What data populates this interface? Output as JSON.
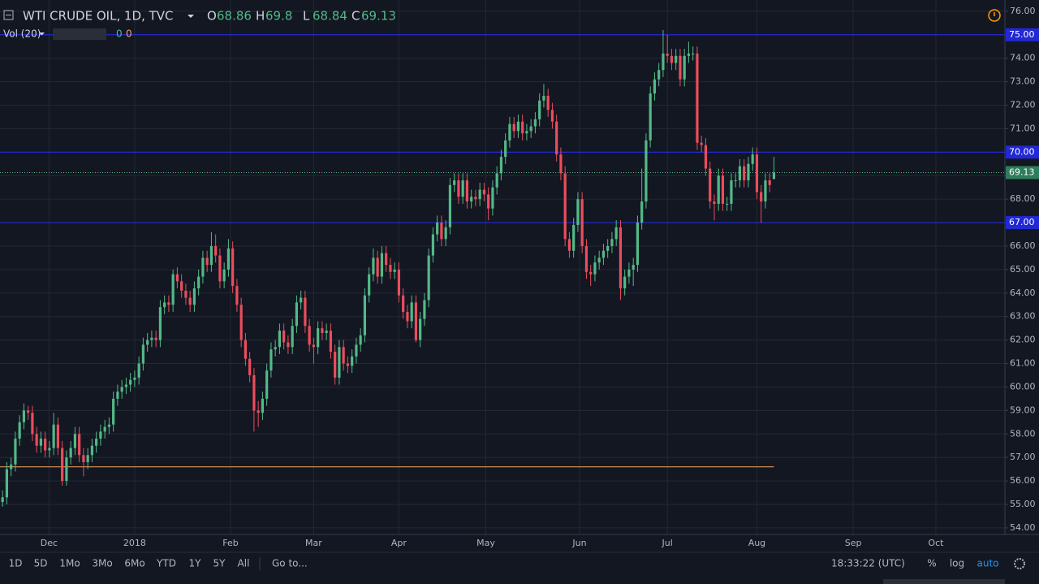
{
  "chart_data": {
    "type": "candlestick",
    "title": "WTI CRUDE OIL, 1D, TVC",
    "ohlc_labels": [
      "O",
      "H",
      "L",
      "C"
    ],
    "indicator": "Vol (20)",
    "indicator_values": [
      0,
      0
    ],
    "up_color": "#53b987",
    "down_color": "#eb4d5c",
    "grid": true,
    "log": false,
    "ylim": [
      53.72,
      76.48
    ],
    "yticks": [
      {
        "value": 54,
        "label": "54.00"
      },
      {
        "value": 55,
        "label": "55.00"
      },
      {
        "value": 56,
        "label": "56.00"
      },
      {
        "value": 57,
        "label": "57.00"
      },
      {
        "value": 58,
        "label": "58.00"
      },
      {
        "value": 59,
        "label": "59.00"
      },
      {
        "value": 60,
        "label": "60.00"
      },
      {
        "value": 61,
        "label": "61.00"
      },
      {
        "value": 62,
        "label": "62.00"
      },
      {
        "value": 63,
        "label": "63.00"
      },
      {
        "value": 64,
        "label": "64.00"
      },
      {
        "value": 65,
        "label": "65.00"
      },
      {
        "value": 66,
        "label": "66.00"
      },
      {
        "value": 67,
        "label": "67.00"
      },
      {
        "value": 68,
        "label": "68.00"
      },
      {
        "value": 69,
        "label": "69.00"
      },
      {
        "value": 70,
        "label": "70.00"
      },
      {
        "value": 71,
        "label": "71.00"
      },
      {
        "value": 72,
        "label": "72.00"
      },
      {
        "value": 73,
        "label": "73.00"
      },
      {
        "value": 74,
        "label": "74.00"
      },
      {
        "value": 75,
        "label": "75.00"
      },
      {
        "value": 76,
        "label": "76.00"
      }
    ],
    "xlim": [
      -0.6,
      235.2
    ],
    "xticks": [
      {
        "value": 10.9,
        "label": "Dec"
      },
      {
        "value": 31,
        "label": "2018"
      },
      {
        "value": 53.5,
        "label": "Feb"
      },
      {
        "value": 73,
        "label": "Mar"
      },
      {
        "value": 93,
        "label": "Apr"
      },
      {
        "value": 113.4,
        "label": "May"
      },
      {
        "value": 135.4,
        "label": "Jun"
      },
      {
        "value": 156,
        "label": "Jul"
      },
      {
        "value": 177,
        "label": "Aug"
      },
      {
        "value": 199.6,
        "label": "Sep"
      },
      {
        "value": 219,
        "label": "Oct"
      }
    ],
    "hlines": [
      {
        "value": 75,
        "label": "75.00",
        "color": "#2128d4"
      },
      {
        "value": 70,
        "label": "70.00",
        "color": "#2128d4"
      },
      {
        "value": 67,
        "label": "67.00",
        "color": "#2128d4"
      }
    ],
    "support_line": {
      "value": 56.6,
      "color": "#f7a35c"
    },
    "open": [
      55.1,
      55.3,
      56.5,
      56.7,
      57.8,
      58.5,
      59.0,
      58.9,
      58.0,
      57.5,
      57.8,
      57.3,
      57.4,
      58.4,
      57.4,
      56.0,
      57.0,
      57.4,
      58.0,
      57.1,
      56.8,
      57.1,
      57.5,
      57.8,
      58.1,
      58.3,
      58.4,
      59.5,
      59.8,
      60.0,
      60.1,
      60.3,
      60.4,
      61.0,
      61.8,
      62.0,
      62.1,
      62.0,
      63.4,
      63.6,
      63.5,
      64.8,
      64.5,
      64.1,
      63.8,
      63.5,
      64.2,
      64.7,
      65.5,
      65.2,
      66.0,
      65.6,
      64.5,
      65.0,
      65.9,
      64.3,
      63.5,
      62.0,
      61.2,
      60.5,
      59.0,
      58.9,
      59.5,
      60.7,
      61.6,
      61.7,
      62.4,
      61.9,
      61.7,
      62.6,
      63.6,
      63.8,
      62.6,
      61.8,
      61.7,
      62.5,
      62.3,
      62.4,
      61.5,
      60.4,
      61.7,
      61.0,
      60.9,
      61.3,
      61.8,
      62.2,
      63.9,
      64.8,
      65.5,
      64.7,
      65.7,
      65.2,
      64.9,
      65.0,
      63.9,
      63.2,
      62.8,
      63.6,
      62.0,
      62.9,
      63.7,
      65.6,
      66.5,
      67.0,
      66.3,
      66.8,
      68.6,
      68.8,
      68.1,
      68.8,
      67.9,
      68.1,
      68.0,
      68.4,
      68.2,
      67.6,
      68.5,
      69.1,
      69.8,
      70.5,
      71.2,
      70.9,
      71.3,
      70.8,
      70.9,
      71.1,
      71.4,
      72.2,
      72.4,
      71.8,
      71.3,
      69.9,
      69.1,
      66.3,
      65.8,
      66.9,
      68.0,
      66.0,
      64.9,
      64.8,
      65.3,
      65.5,
      65.8,
      66.0,
      66.3,
      66.8,
      64.2,
      64.7,
      65.0,
      65.2,
      67.0,
      67.9,
      70.5,
      72.5,
      73.1,
      73.5,
      74.2,
      74.1,
      73.8,
      74.1,
      73.1,
      74.1,
      74.2,
      74.2,
      70.4,
      70.3,
      69.3,
      67.9,
      67.8,
      69.0,
      67.8,
      67.8,
      68.8,
      68.8,
      69.4,
      68.8,
      69.5,
      69.9,
      68.3,
      67.9,
      68.8,
      68.86
    ],
    "high": [
      55.6,
      56.8,
      57.0,
      58.1,
      58.8,
      59.3,
      59.2,
      59.2,
      58.3,
      58.1,
      58.1,
      57.7,
      58.9,
      58.7,
      57.7,
      57.3,
      57.7,
      58.3,
      58.3,
      57.4,
      57.4,
      57.8,
      58.1,
      58.4,
      58.6,
      58.7,
      59.8,
      60.1,
      60.3,
      60.4,
      60.6,
      60.7,
      61.3,
      62.1,
      62.3,
      62.4,
      62.4,
      63.7,
      63.9,
      63.9,
      65.0,
      65.1,
      64.8,
      64.4,
      64.1,
      64.5,
      65.0,
      65.8,
      65.8,
      66.6,
      66.5,
      65.9,
      65.3,
      66.3,
      66.2,
      64.6,
      63.8,
      62.3,
      61.5,
      60.8,
      59.4,
      59.8,
      61.0,
      61.9,
      62.0,
      62.7,
      62.7,
      62.2,
      62.9,
      63.9,
      64.1,
      64.1,
      62.9,
      62.1,
      62.8,
      62.8,
      62.7,
      62.7,
      61.8,
      62.0,
      62.0,
      61.3,
      61.6,
      62.1,
      62.5,
      64.2,
      65.1,
      65.9,
      65.8,
      66.0,
      66.0,
      65.5,
      65.3,
      65.3,
      64.2,
      63.5,
      63.9,
      63.9,
      63.2,
      64.0,
      65.9,
      66.8,
      67.3,
      67.3,
      67.1,
      68.9,
      69.1,
      69.1,
      69.1,
      69.1,
      68.4,
      68.4,
      68.7,
      68.7,
      68.5,
      68.8,
      69.4,
      70.1,
      70.8,
      71.5,
      71.5,
      71.6,
      71.6,
      71.2,
      71.4,
      71.7,
      72.5,
      72.9,
      72.7,
      72.1,
      71.6,
      70.2,
      69.4,
      66.6,
      67.2,
      68.3,
      68.3,
      66.3,
      65.2,
      65.6,
      65.8,
      66.1,
      66.3,
      66.6,
      67.1,
      67.1,
      65.0,
      65.3,
      65.5,
      67.3,
      69.3,
      70.8,
      72.8,
      73.4,
      73.8,
      75.2,
      75.0,
      74.4,
      74.4,
      74.4,
      74.4,
      74.7,
      74.5,
      74.5,
      70.7,
      70.6,
      69.6,
      68.2,
      69.3,
      69.3,
      68.1,
      69.1,
      69.1,
      69.7,
      69.7,
      69.8,
      70.2,
      70.2,
      68.6,
      69.1,
      69.1,
      69.8
    ],
    "low": [
      54.9,
      55.0,
      56.2,
      56.4,
      57.5,
      58.2,
      58.6,
      57.7,
      57.2,
      57.2,
      57.0,
      57.0,
      57.1,
      57.1,
      55.8,
      55.8,
      56.7,
      57.1,
      56.8,
      56.2,
      56.5,
      56.8,
      57.2,
      57.5,
      57.8,
      58.0,
      58.1,
      59.2,
      59.5,
      59.7,
      59.8,
      60.0,
      60.1,
      60.7,
      61.5,
      61.7,
      61.7,
      61.7,
      63.1,
      63.2,
      63.2,
      64.2,
      63.8,
      63.5,
      63.2,
      63.2,
      63.9,
      64.4,
      64.9,
      64.9,
      65.3,
      64.2,
      64.2,
      64.7,
      64.0,
      63.2,
      61.7,
      60.9,
      60.2,
      58.1,
      58.3,
      58.6,
      59.2,
      60.4,
      61.3,
      61.4,
      61.6,
      61.4,
      61.4,
      62.3,
      63.3,
      62.3,
      61.5,
      61.0,
      61.4,
      62.0,
      62.0,
      61.2,
      60.1,
      60.1,
      60.7,
      60.6,
      60.6,
      61.0,
      61.5,
      61.9,
      63.6,
      64.5,
      64.4,
      64.4,
      64.9,
      64.6,
      64.6,
      63.6,
      62.9,
      62.5,
      62.5,
      61.9,
      61.7,
      62.6,
      63.4,
      65.3,
      66.2,
      66.0,
      66.0,
      66.5,
      68.3,
      67.8,
      67.8,
      67.6,
      67.6,
      67.7,
      67.7,
      67.9,
      67.1,
      67.3,
      68.2,
      68.8,
      69.5,
      70.2,
      70.6,
      70.6,
      70.5,
      70.5,
      70.6,
      70.8,
      71.1,
      71.9,
      71.5,
      71.0,
      69.6,
      68.8,
      66.0,
      65.5,
      65.5,
      66.6,
      65.7,
      64.6,
      64.3,
      64.5,
      65.0,
      65.2,
      65.5,
      65.7,
      66.0,
      63.7,
      63.9,
      64.4,
      64.3,
      64.9,
      66.7,
      67.6,
      70.2,
      72.2,
      72.8,
      73.2,
      73.8,
      73.5,
      73.5,
      72.8,
      72.8,
      73.8,
      73.9,
      70.1,
      70.0,
      69.0,
      67.6,
      67.1,
      67.5,
      67.5,
      67.5,
      67.5,
      68.5,
      68.5,
      68.5,
      68.5,
      69.2,
      68.0,
      67.0,
      67.6,
      68.3,
      68.84
    ],
    "close": [
      55.3,
      56.5,
      56.7,
      57.8,
      58.5,
      59.0,
      58.9,
      58.0,
      57.5,
      57.8,
      57.3,
      57.4,
      58.4,
      57.4,
      56.0,
      57.0,
      57.4,
      58.0,
      57.1,
      56.8,
      57.1,
      57.5,
      57.8,
      58.1,
      58.3,
      58.4,
      59.5,
      59.8,
      60.0,
      60.1,
      60.3,
      60.4,
      61.0,
      61.8,
      62.0,
      62.1,
      62.0,
      63.4,
      63.6,
      63.5,
      64.8,
      64.5,
      64.1,
      63.8,
      63.5,
      64.2,
      64.7,
      65.5,
      65.2,
      66.0,
      65.6,
      64.5,
      65.0,
      65.9,
      64.3,
      63.5,
      62.0,
      61.2,
      60.5,
      59.0,
      58.9,
      59.5,
      60.7,
      61.6,
      61.7,
      62.4,
      61.9,
      61.7,
      62.6,
      63.6,
      63.8,
      62.6,
      61.8,
      61.7,
      62.5,
      62.3,
      62.4,
      61.5,
      60.4,
      61.7,
      61.0,
      60.9,
      61.3,
      61.8,
      62.2,
      63.9,
      64.8,
      65.5,
      64.7,
      65.7,
      65.2,
      64.9,
      65.0,
      63.9,
      63.2,
      62.8,
      63.6,
      62.0,
      62.9,
      63.7,
      65.6,
      66.5,
      67.0,
      66.3,
      66.8,
      68.6,
      68.8,
      68.1,
      68.8,
      67.9,
      68.1,
      68.0,
      68.4,
      68.2,
      67.6,
      68.5,
      69.1,
      69.8,
      70.5,
      71.2,
      70.9,
      71.3,
      70.8,
      70.9,
      71.1,
      71.4,
      72.2,
      72.4,
      71.8,
      71.3,
      69.9,
      69.1,
      66.3,
      65.8,
      66.9,
      68.0,
      66.0,
      64.9,
      64.8,
      65.3,
      65.5,
      65.8,
      66.0,
      66.3,
      66.8,
      64.2,
      64.7,
      65.0,
      65.2,
      67.0,
      67.9,
      70.5,
      72.5,
      73.1,
      73.5,
      74.2,
      74.1,
      73.8,
      74.1,
      73.1,
      74.1,
      74.2,
      74.2,
      70.4,
      70.3,
      69.3,
      67.9,
      67.8,
      69.0,
      67.8,
      67.8,
      68.8,
      68.8,
      69.4,
      68.8,
      69.5,
      69.9,
      68.3,
      67.9,
      68.8,
      68.6,
      69.13
    ]
  },
  "toolbar": {
    "ranges": [
      "1D",
      "5D",
      "1Mo",
      "3Mo",
      "6Mo",
      "YTD",
      "1Y",
      "5Y",
      "All"
    ],
    "goto": "Go to...",
    "clock": "18:33:22 (UTC)",
    "options": [
      "%",
      "log",
      "auto"
    ]
  }
}
